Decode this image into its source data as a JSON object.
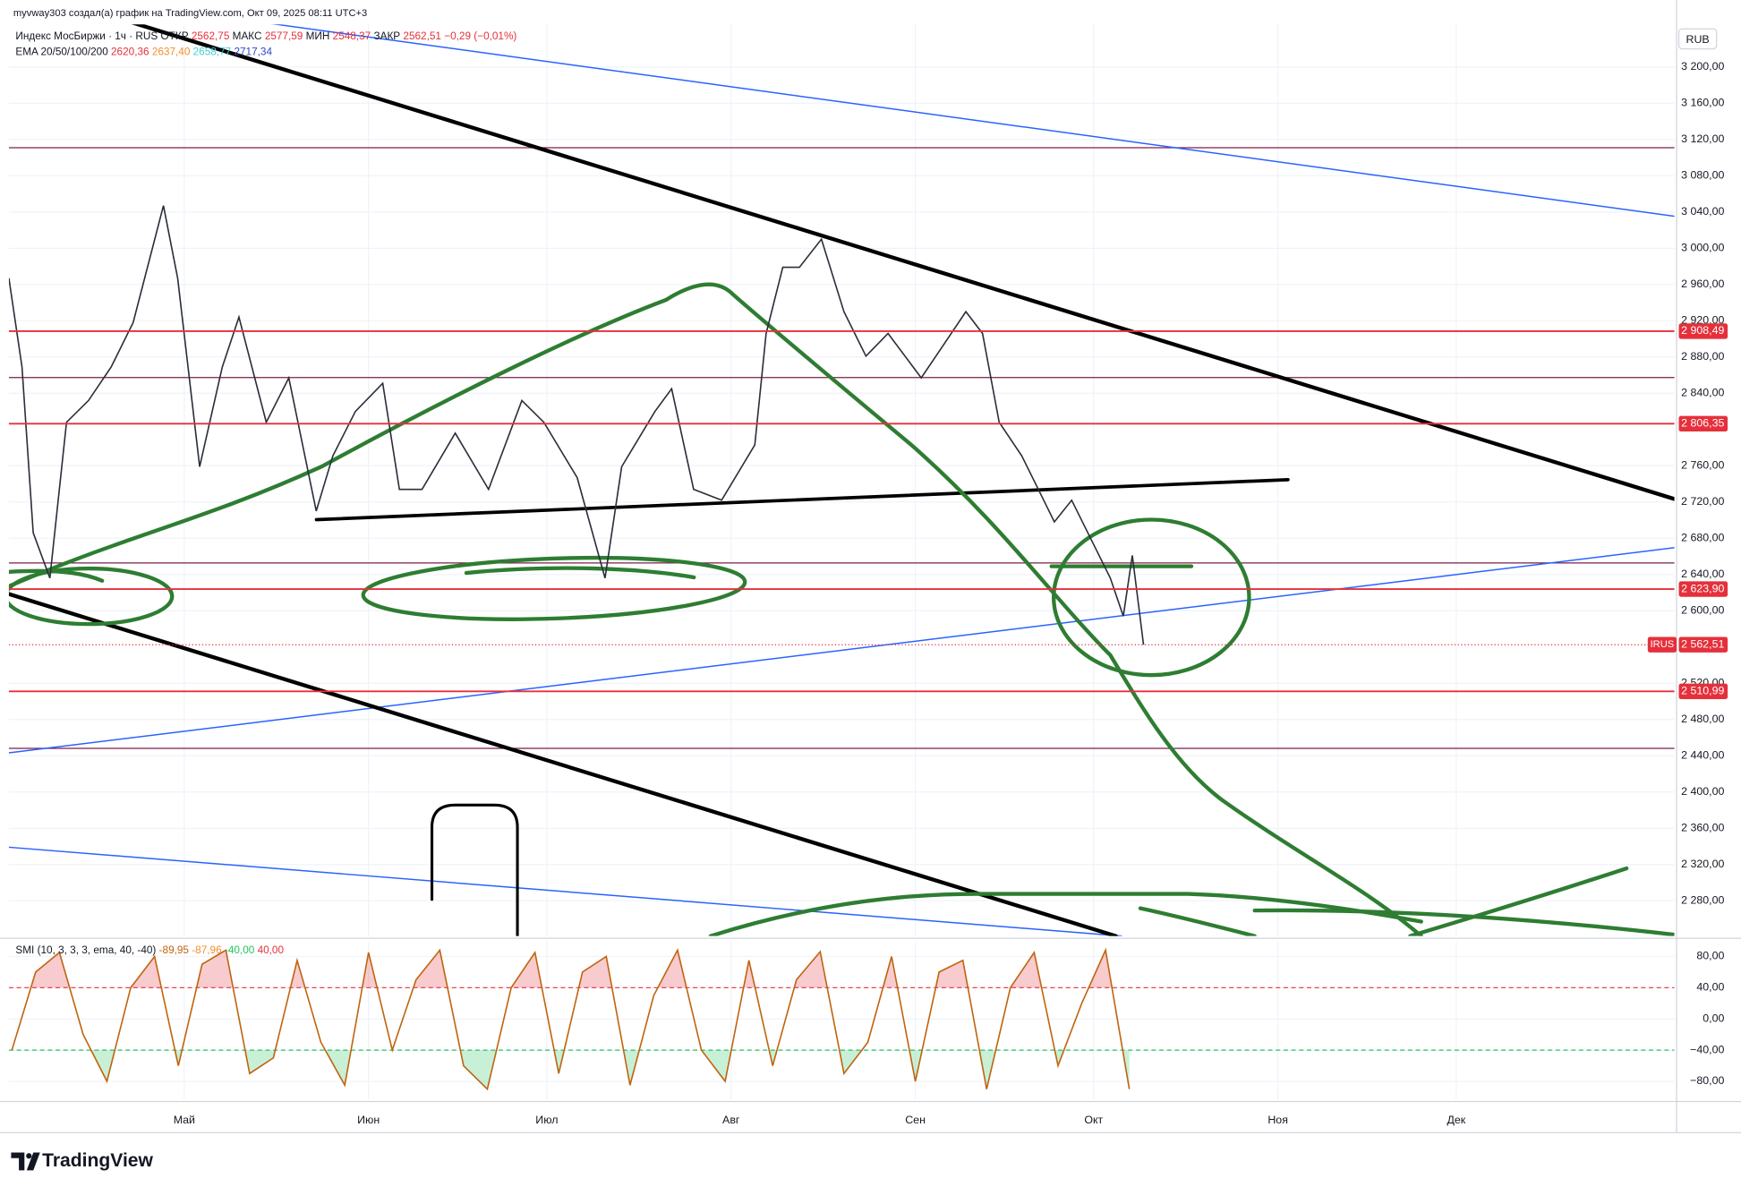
{
  "header": {
    "author_line": "myvway303 создал(а) график на TradingView.com, Окт 09, 2025 08:11 UTC+3",
    "currency": "RUB",
    "logo": "TradingView"
  },
  "chart_data": [
    {
      "type": "line",
      "title": "Индекс МосБиржи · 1ч · RUS",
      "ohlc": [
        {
          "label": "ОТКР",
          "text": "2562,75"
        },
        {
          "label": "МАКС",
          "text": "2577,59"
        },
        {
          "label": "МИН",
          "text": "2548,37"
        },
        {
          "label": "ЗАКР",
          "text": "2562,51"
        }
      ],
      "change": "−0,29 (−0,01%)",
      "ohlc_color": "#e5303b",
      "indicator": "EMA 20/50/100/200",
      "indicator_values": [
        "2620,36",
        "2637,40",
        "2658,77",
        "2717,34"
      ],
      "indicator_colors": [
        "#e5303b",
        "#f0902c",
        "#3fd0d8",
        "#2f47c9"
      ],
      "x": [
        0.5,
        2.7,
        4.6,
        7.4,
        10.2,
        13.9,
        17.7,
        21.4,
        26.5,
        28.9,
        32.6,
        36.4,
        39.2,
        43.8,
        47.6,
        52.2,
        55.0,
        58.8,
        63.4,
        66.2,
        70.0,
        75.6,
        81.2,
        86.8,
        90.5,
        96.1,
        100.8,
        103.6,
        109.2,
        112.0,
        115.7,
        120.4,
        126.0,
        127.9,
        130.7,
        133.5,
        137.2,
        141.0,
        144.7,
        148.4,
        154.0,
        157.8,
        161.5,
        164.3,
        167.1,
        170.9,
        174.6,
        176.4,
        179.3,
        183.0,
        185.8,
        188.0,
        189.5,
        191.4
      ],
      "series": [
        {
          "name": "IRUS",
          "color": "#2a2e39",
          "values": [
            2967,
            2869,
            2686,
            2636,
            2808,
            2832,
            2869,
            2918,
            3047,
            2967,
            2759,
            2869,
            2924,
            2808,
            2857,
            2710,
            2771,
            2820,
            2851,
            2734,
            2734,
            2796,
            2734,
            2832,
            2808,
            2747,
            2636,
            2759,
            2820,
            2845,
            2734,
            2722,
            2783,
            2906,
            2979,
            2979,
            3010,
            2930,
            2881,
            2906,
            2857,
            2894,
            2930,
            2906,
            2808,
            2771,
            2722,
            2698,
            2722,
            2673,
            2636,
            2594,
            2661,
            2562.51
          ]
        }
      ],
      "xlim": [
        0.5,
        280.7
      ],
      "xticks": [
        {
          "value": 30,
          "label": "Май"
        },
        {
          "value": 61,
          "label": "Июн"
        },
        {
          "value": 91,
          "label": "Июл"
        },
        {
          "value": 122,
          "label": "Авг"
        },
        {
          "value": 153,
          "label": "Сен"
        },
        {
          "value": 183,
          "label": "Окт"
        },
        {
          "value": 214,
          "label": "Ноя"
        },
        {
          "value": 244,
          "label": "Дек"
        }
      ],
      "ylim": [
        2241,
        3247
      ],
      "yticks": [
        {
          "value": 3200,
          "label": "3 200,00"
        },
        {
          "value": 3160,
          "label": "3 160,00"
        },
        {
          "value": 3120,
          "label": "3 120,00"
        },
        {
          "value": 3080,
          "label": "3 080,00"
        },
        {
          "value": 3040,
          "label": "3 040,00"
        },
        {
          "value": 3000,
          "label": "3 000,00"
        },
        {
          "value": 2960,
          "label": "2 960,00"
        },
        {
          "value": 2920,
          "label": "2 920,00"
        },
        {
          "value": 2880,
          "label": "2 880,00"
        },
        {
          "value": 2840,
          "label": "2 840,00"
        },
        {
          "value": 2760,
          "label": "2 760,00"
        },
        {
          "value": 2720,
          "label": "2 720,00"
        },
        {
          "value": 2680,
          "label": "2 680,00"
        },
        {
          "value": 2640,
          "label": "2 640,00"
        },
        {
          "value": 2600,
          "label": "2 600,00"
        },
        {
          "value": 2520,
          "label": "2 520,00"
        },
        {
          "value": 2480,
          "label": "2 480,00"
        },
        {
          "value": 2440,
          "label": "2 440,00"
        },
        {
          "value": 2400,
          "label": "2 400,00"
        },
        {
          "value": 2360,
          "label": "2 360,00"
        },
        {
          "value": 2320,
          "label": "2 320,00"
        },
        {
          "value": 2280,
          "label": "2 280,00"
        }
      ],
      "grid": true,
      "levels": [
        {
          "value": 2908.49,
          "label": "2 908,49"
        },
        {
          "value": 2806.35,
          "label": "2 806,35"
        },
        {
          "value": 2623.9,
          "label": "2 623,90"
        },
        {
          "value": 2510.99,
          "label": "2 510,99"
        }
      ],
      "level_color": "#e5303b",
      "last_price": {
        "value": 2562.51,
        "label": "2 562,51"
      }
    },
    {
      "type": "line",
      "title": "SMI (10, 3, 3, 3, ema, 40, -40)",
      "legend_values": [
        "-89,95",
        "-87,96",
        "-40,00",
        "40,00"
      ],
      "legend_colors": [
        "#c0640f",
        "#f0902c",
        "#22c55e",
        "#e5303b"
      ],
      "x": [
        1,
        5,
        9,
        13,
        17,
        21,
        25,
        29,
        33,
        37,
        41,
        45,
        49,
        53,
        57,
        61,
        65,
        69,
        73,
        77,
        81,
        85,
        89,
        93,
        97,
        101,
        105,
        109,
        113,
        117,
        121,
        125,
        129,
        133,
        137,
        141,
        145,
        149,
        153,
        157,
        161,
        165,
        169,
        173,
        177,
        181,
        185,
        189
      ],
      "series": [
        {
          "name": "SMI",
          "color": "#c0640f",
          "values": [
            -40,
            60,
            85,
            -20,
            -80,
            40,
            80,
            -60,
            70,
            88,
            -70,
            -50,
            75,
            -30,
            -85,
            85,
            -40,
            50,
            88,
            -60,
            -90,
            40,
            85,
            -70,
            60,
            80,
            -85,
            30,
            88,
            -40,
            -80,
            75,
            -60,
            50,
            86,
            -70,
            -30,
            80,
            -80,
            60,
            75,
            -90,
            40,
            85,
            -60,
            20,
            88,
            -89.95
          ]
        }
      ],
      "ylim": [
        -103,
        99
      ],
      "yticks": [
        {
          "value": 80,
          "label": "80,00"
        },
        {
          "value": 40,
          "label": "40,00"
        },
        {
          "value": 0,
          "label": "0,00"
        },
        {
          "value": -40,
          "label": "−40,00"
        },
        {
          "value": -80,
          "label": "−80,00"
        }
      ],
      "bands": [
        {
          "value": 40,
          "color": "#e5303b"
        },
        {
          "value": -40,
          "color": "#22c55e"
        }
      ]
    }
  ]
}
